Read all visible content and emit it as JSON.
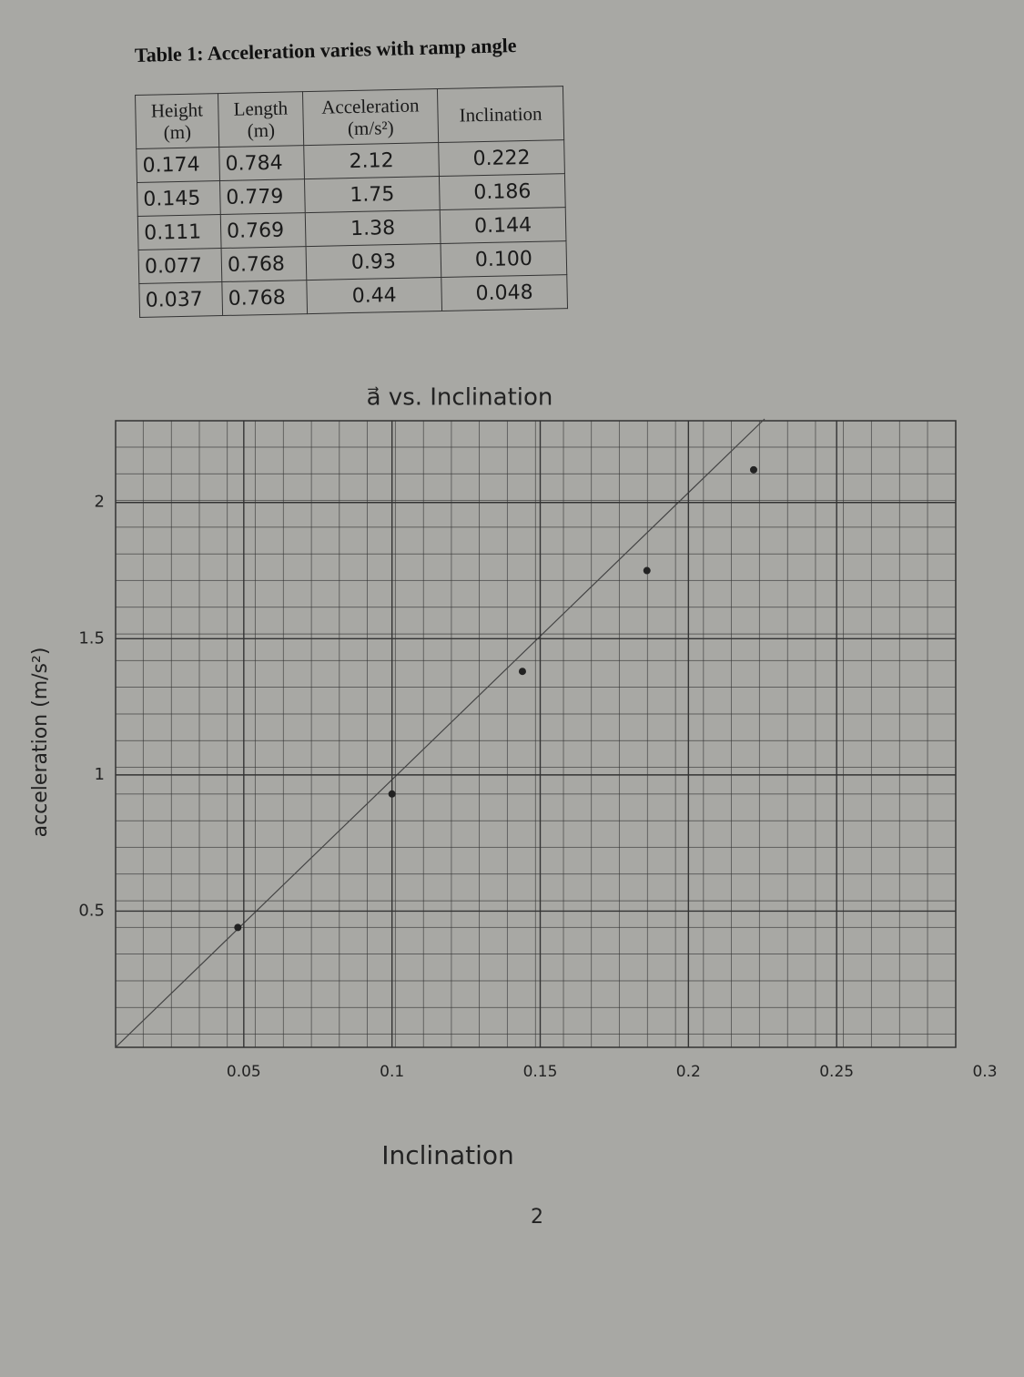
{
  "table": {
    "title": "Table 1:  Acceleration varies with ramp angle",
    "columns": [
      "Height (m)",
      "Length (m)",
      "Acceleration (m/s²)",
      "Inclination"
    ],
    "rows": [
      [
        "0.174",
        "0.784",
        "2.12",
        "0.222"
      ],
      [
        "0.145",
        "0.779",
        "1.75",
        "0.186"
      ],
      [
        "0.111",
        "0.769",
        "1.38",
        "0.144"
      ],
      [
        "0.077",
        "0.768",
        "0.93",
        "0.100"
      ],
      [
        "0.037",
        "0.768",
        "0.44",
        "0.048"
      ]
    ]
  },
  "chart_data": {
    "type": "scatter",
    "title": "a⃗ vs. Inclination",
    "x_label": "Inclination",
    "y_label": "acceleration (m/s²)",
    "x": [
      0.222,
      0.186,
      0.144,
      0.1,
      0.048
    ],
    "values": [
      2.12,
      1.75,
      1.38,
      0.93,
      0.44
    ],
    "color": "#222222",
    "xlim": [
      0,
      0.3
    ],
    "xticks": [
      0.05,
      0.1,
      0.15,
      0.2,
      0.25,
      0.3
    ],
    "ylim": [
      0,
      2.3
    ],
    "yticks": [
      0.5,
      1,
      1.5,
      2
    ],
    "grid": true
  },
  "page_number": "2"
}
